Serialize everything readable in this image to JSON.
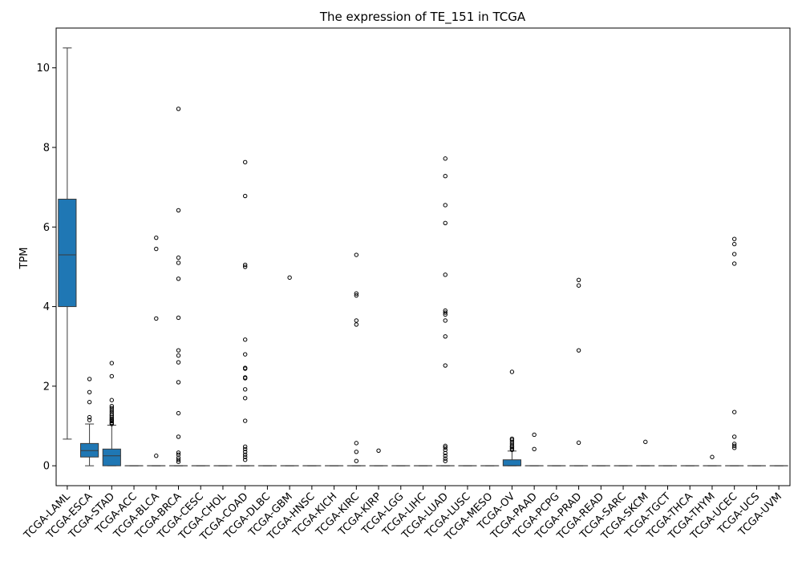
{
  "chart_data": {
    "type": "box",
    "title": "The expression of TE_151 in TCGA",
    "xlabel": "",
    "ylabel": "TPM",
    "ylim": [
      -0.5,
      11.0
    ],
    "yticks": [
      0,
      2,
      4,
      6,
      8,
      10
    ],
    "grid": false,
    "legend": "none",
    "box_color": "#1f77b4",
    "categories": [
      "TCGA-LAML",
      "TCGA-ESCA",
      "TCGA-STAD",
      "TCGA-ACC",
      "TCGA-BLCA",
      "TCGA-BRCA",
      "TCGA-CESC",
      "TCGA-CHOL",
      "TCGA-COAD",
      "TCGA-DLBC",
      "TCGA-GBM",
      "TCGA-HNSC",
      "TCGA-KICH",
      "TCGA-KIRC",
      "TCGA-KIRP",
      "TCGA-LGG",
      "TCGA-LIHC",
      "TCGA-LUAD",
      "TCGA-LUSC",
      "TCGA-MESO",
      "TCGA-OV",
      "TCGA-PAAD",
      "TCGA-PCPG",
      "TCGA-PRAD",
      "TCGA-READ",
      "TCGA-SARC",
      "TCGA-SKCM",
      "TCGA-TGCT",
      "TCGA-THCA",
      "TCGA-THYM",
      "TCGA-UCEC",
      "TCGA-UCS",
      "TCGA-UVM"
    ],
    "boxes": [
      {
        "whislo": 0.67,
        "q1": 4.0,
        "med": 5.3,
        "q3": 6.7,
        "whishi": 10.5,
        "fliers": []
      },
      {
        "whislo": 0.0,
        "q1": 0.22,
        "med": 0.38,
        "q3": 0.56,
        "whishi": 1.05,
        "fliers": [
          1.15,
          1.22,
          1.6,
          1.85,
          2.18
        ]
      },
      {
        "whislo": 0.0,
        "q1": 0.0,
        "med": 0.25,
        "q3": 0.42,
        "whishi": 1.02,
        "fliers": [
          1.05,
          1.08,
          1.12,
          1.15,
          1.18,
          1.22,
          1.26,
          1.3,
          1.35,
          1.4,
          1.45,
          1.5,
          1.65,
          2.25,
          2.58
        ]
      },
      {
        "whislo": 0,
        "q1": 0,
        "med": 0,
        "q3": 0,
        "whishi": 0,
        "fliers": []
      },
      {
        "whislo": 0,
        "q1": 0,
        "med": 0,
        "q3": 0,
        "whishi": 0,
        "fliers": [
          0.25,
          3.7,
          5.45,
          5.73
        ]
      },
      {
        "whislo": 0,
        "q1": 0,
        "med": 0,
        "q3": 0,
        "whishi": 0,
        "fliers": [
          0.1,
          0.15,
          0.2,
          0.28,
          0.33,
          0.73,
          1.32,
          2.1,
          2.6,
          2.77,
          2.9,
          3.72,
          4.7,
          5.1,
          5.23,
          6.42,
          8.97
        ]
      },
      {
        "whislo": 0,
        "q1": 0,
        "med": 0,
        "q3": 0,
        "whishi": 0,
        "fliers": []
      },
      {
        "whislo": 0,
        "q1": 0,
        "med": 0,
        "q3": 0,
        "whishi": 0,
        "fliers": []
      },
      {
        "whislo": 0,
        "q1": 0,
        "med": 0,
        "q3": 0,
        "whishi": 0,
        "fliers": [
          0.15,
          0.22,
          0.28,
          0.35,
          0.42,
          0.48,
          1.13,
          1.7,
          1.92,
          2.2,
          2.22,
          2.44,
          2.46,
          2.8,
          3.17,
          5.0,
          5.05,
          6.78,
          7.63
        ]
      },
      {
        "whislo": 0,
        "q1": 0,
        "med": 0,
        "q3": 0,
        "whishi": 0,
        "fliers": []
      },
      {
        "whislo": 0,
        "q1": 0,
        "med": 0,
        "q3": 0,
        "whishi": 0,
        "fliers": [
          4.73
        ]
      },
      {
        "whislo": 0,
        "q1": 0,
        "med": 0,
        "q3": 0,
        "whishi": 0,
        "fliers": []
      },
      {
        "whislo": 0,
        "q1": 0,
        "med": 0,
        "q3": 0,
        "whishi": 0,
        "fliers": []
      },
      {
        "whislo": 0,
        "q1": 0,
        "med": 0,
        "q3": 0,
        "whishi": 0,
        "fliers": [
          0.12,
          0.35,
          0.57,
          3.55,
          3.65,
          4.28,
          4.33,
          5.3
        ]
      },
      {
        "whislo": 0,
        "q1": 0,
        "med": 0,
        "q3": 0,
        "whishi": 0,
        "fliers": [
          0.38
        ]
      },
      {
        "whislo": 0,
        "q1": 0,
        "med": 0,
        "q3": 0,
        "whishi": 0,
        "fliers": []
      },
      {
        "whislo": 0,
        "q1": 0,
        "med": 0,
        "q3": 0,
        "whishi": 0,
        "fliers": []
      },
      {
        "whislo": 0,
        "q1": 0,
        "med": 0,
        "q3": 0,
        "whishi": 0,
        "fliers": [
          0.12,
          0.18,
          0.25,
          0.32,
          0.4,
          0.46,
          0.5,
          2.52,
          3.25,
          3.65,
          3.8,
          3.85,
          3.9,
          4.8,
          6.1,
          6.55,
          7.28,
          7.72
        ]
      },
      {
        "whislo": 0,
        "q1": 0,
        "med": 0,
        "q3": 0,
        "whishi": 0,
        "fliers": []
      },
      {
        "whislo": 0,
        "q1": 0,
        "med": 0,
        "q3": 0,
        "whishi": 0,
        "fliers": []
      },
      {
        "whislo": 0.0,
        "q1": 0.0,
        "med": 0.0,
        "q3": 0.15,
        "whishi": 0.37,
        "fliers": [
          0.4,
          0.43,
          0.47,
          0.5,
          0.55,
          0.6,
          0.65,
          0.68,
          2.36
        ]
      },
      {
        "whislo": 0,
        "q1": 0,
        "med": 0,
        "q3": 0,
        "whishi": 0,
        "fliers": [
          0.42,
          0.78
        ]
      },
      {
        "whislo": 0,
        "q1": 0,
        "med": 0,
        "q3": 0,
        "whishi": 0,
        "fliers": []
      },
      {
        "whislo": 0,
        "q1": 0,
        "med": 0,
        "q3": 0,
        "whishi": 0,
        "fliers": [
          0.58,
          2.9,
          4.53,
          4.67
        ]
      },
      {
        "whislo": 0,
        "q1": 0,
        "med": 0,
        "q3": 0,
        "whishi": 0,
        "fliers": []
      },
      {
        "whislo": 0,
        "q1": 0,
        "med": 0,
        "q3": 0,
        "whishi": 0,
        "fliers": []
      },
      {
        "whislo": 0,
        "q1": 0,
        "med": 0,
        "q3": 0,
        "whishi": 0,
        "fliers": [
          0.6
        ]
      },
      {
        "whislo": 0,
        "q1": 0,
        "med": 0,
        "q3": 0,
        "whishi": 0,
        "fliers": []
      },
      {
        "whislo": 0,
        "q1": 0,
        "med": 0,
        "q3": 0,
        "whishi": 0,
        "fliers": []
      },
      {
        "whislo": 0,
        "q1": 0,
        "med": 0,
        "q3": 0,
        "whishi": 0,
        "fliers": [
          0.22
        ]
      },
      {
        "whislo": 0,
        "q1": 0,
        "med": 0,
        "q3": 0,
        "whishi": 0,
        "fliers": [
          0.45,
          0.5,
          0.55,
          0.73,
          1.35,
          5.08,
          5.32,
          5.57,
          5.7
        ]
      },
      {
        "whislo": 0,
        "q1": 0,
        "med": 0,
        "q3": 0,
        "whishi": 0,
        "fliers": []
      },
      {
        "whislo": 0,
        "q1": 0,
        "med": 0,
        "q3": 0,
        "whishi": 0,
        "fliers": []
      }
    ]
  }
}
